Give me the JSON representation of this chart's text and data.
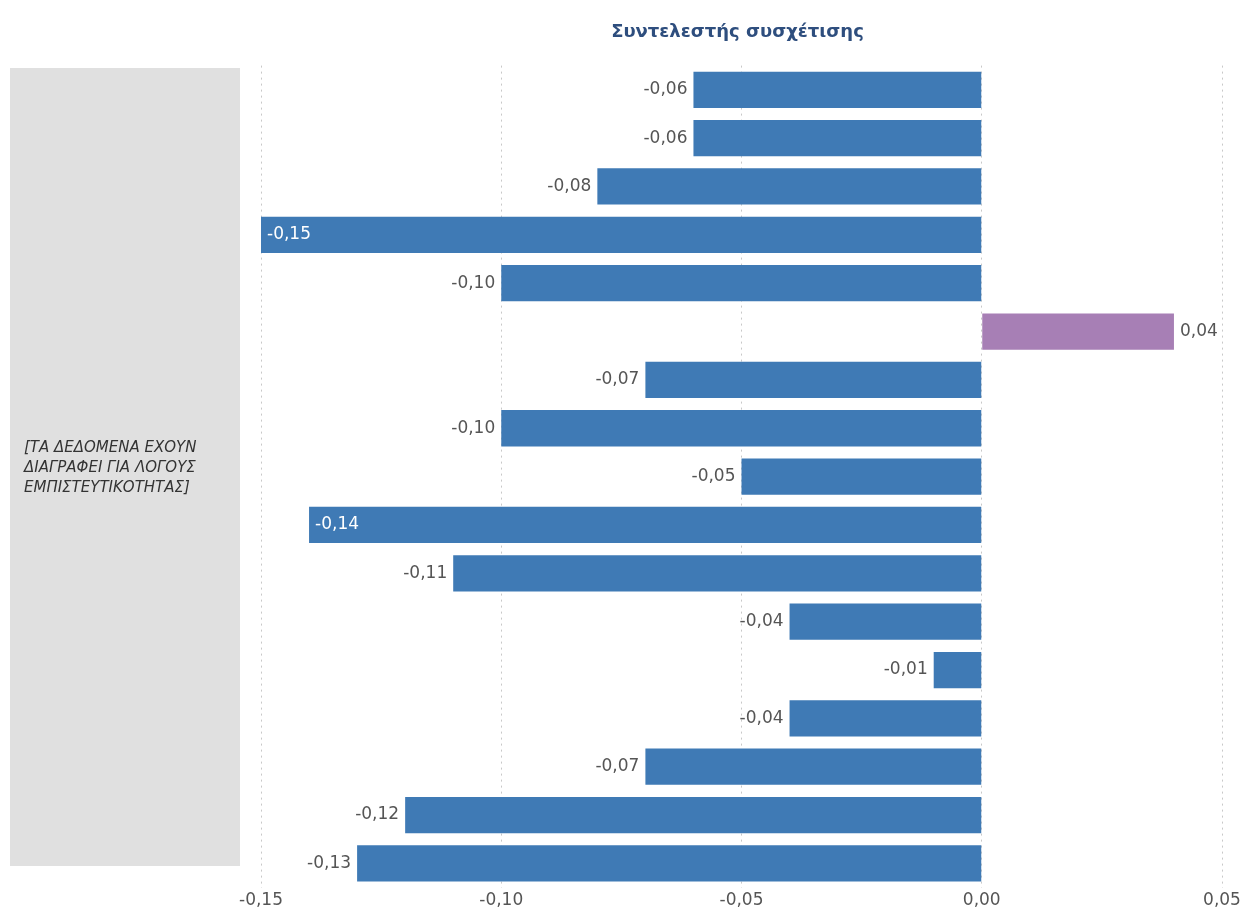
{
  "chart_data": {
    "type": "bar",
    "orientation": "horizontal",
    "title": "Συντελεστής συσχέτισης",
    "categories": [
      null,
      null,
      null,
      null,
      null,
      null,
      null,
      null,
      null,
      null,
      null,
      null,
      null,
      null,
      null,
      null,
      null
    ],
    "values": [
      -0.06,
      -0.06,
      -0.08,
      -0.15,
      -0.1,
      0.04,
      -0.07,
      -0.1,
      -0.05,
      -0.14,
      -0.11,
      -0.04,
      -0.01,
      -0.04,
      -0.07,
      -0.12,
      -0.13
    ],
    "value_labels": [
      "-0,06",
      "-0,06",
      "-0,08",
      "-0,15",
      "-0,10",
      "0,04",
      "-0,07",
      "-0,10",
      "-0,05",
      "-0,14",
      "-0,11",
      "-0,04",
      "-0,01",
      "-0,04",
      "-0,07",
      "-0,12",
      "-0,13"
    ],
    "colors": [
      "#3f7ab5",
      "#3f7ab5",
      "#3f7ab5",
      "#3f7ab5",
      "#3f7ab5",
      "#a77fb5",
      "#3f7ab5",
      "#3f7ab5",
      "#3f7ab5",
      "#3f7ab5",
      "#3f7ab5",
      "#3f7ab5",
      "#3f7ab5",
      "#3f7ab5",
      "#3f7ab5",
      "#3f7ab5",
      "#3f7ab5"
    ],
    "xlim": [
      -0.15,
      0.05
    ],
    "xticks": [
      {
        "value": -0.15,
        "label": "-0,15"
      },
      {
        "value": -0.1,
        "label": "-0,10"
      },
      {
        "value": -0.05,
        "label": "-0,05"
      },
      {
        "value": 0,
        "label": "0,00"
      },
      {
        "value": 0.05,
        "label": "0,05"
      }
    ],
    "grid": "x",
    "legend": false,
    "annotations": [
      "[ΤΑ ΔΕΔΟΜΕΝΑ ΕΧΟΥΝ ΔΙΑΓΡΑΦΕΙ ΓΙΑ ΛΟΓΟΥΣ ΕΜΠΙΣΤΕΥΤΙΚΟΤΗΤΑΣ]"
    ]
  }
}
